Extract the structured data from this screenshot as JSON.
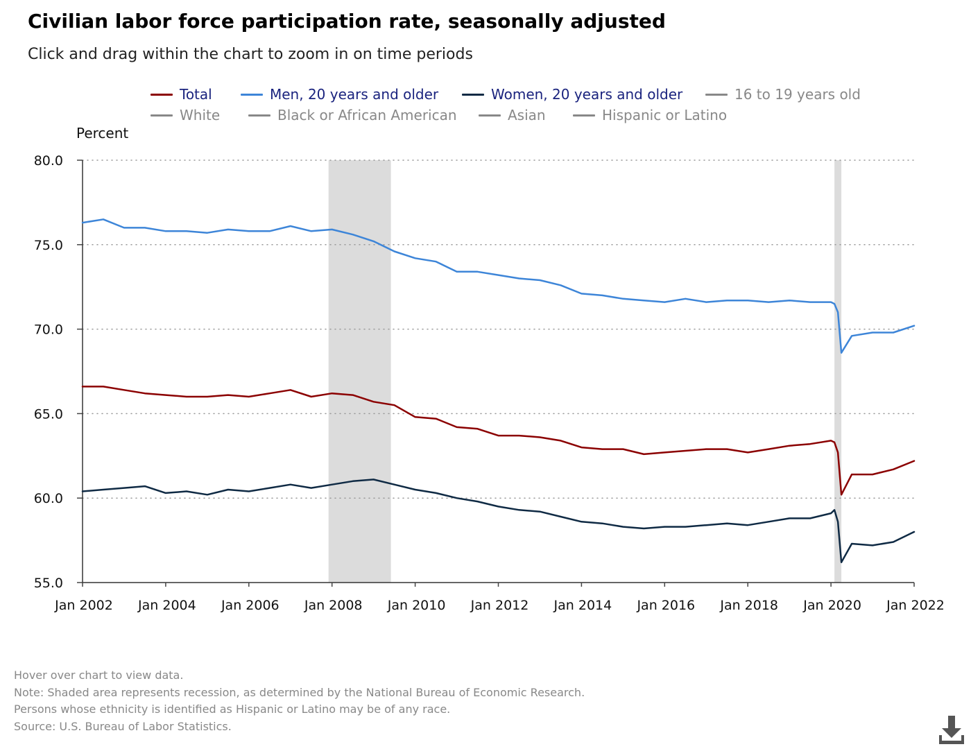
{
  "title": "Civilian labor force participation rate, seasonally adjusted",
  "subtitle": "Click and drag within the chart to zoom in on time periods",
  "legend": [
    {
      "label": "Total",
      "color": "#8b0000",
      "active": true
    },
    {
      "label": "Men, 20 years and older",
      "color": "#3d85d8",
      "active": true
    },
    {
      "label": "Women, 20 years and older",
      "color": "#0f2a44",
      "active": true
    },
    {
      "label": "16 to 19 years old",
      "color": "#888888",
      "active": false
    },
    {
      "label": "White",
      "color": "#888888",
      "active": false
    },
    {
      "label": "Black or African American",
      "color": "#888888",
      "active": false
    },
    {
      "label": "Asian",
      "color": "#888888",
      "active": false
    },
    {
      "label": "Hispanic or Latino",
      "color": "#888888",
      "active": false
    }
  ],
  "footer": {
    "hover": "Hover over chart to view data.",
    "note": "Note: Shaded area represents recession, as determined by the National Bureau of Economic Research.",
    "ethnicity": "Persons whose ethnicity is identified as Hispanic or Latino may be of any race.",
    "source": "Source: U.S. Bureau of Labor Statistics."
  },
  "chart_data": {
    "type": "line",
    "ylabel": "Percent",
    "ylim": [
      55.0,
      80.0
    ],
    "yticks": [
      "55.0",
      "60.0",
      "65.0",
      "70.0",
      "75.0",
      "80.0"
    ],
    "xlim": [
      "2002-01",
      "2022-01"
    ],
    "xticks": [
      "Jan 2002",
      "Jan 2004",
      "Jan 2006",
      "Jan 2008",
      "Jan 2010",
      "Jan 2012",
      "Jan 2014",
      "Jan 2016",
      "Jan 2018",
      "Jan 2020",
      "Jan 2022"
    ],
    "grid": "horizontal dotted",
    "legend_position": "top",
    "recessions": [
      {
        "start": "2007-12",
        "end": "2009-06"
      },
      {
        "start": "2020-02",
        "end": "2020-04"
      }
    ],
    "series": [
      {
        "name": "Total",
        "color": "#8b0000",
        "points": [
          [
            "2002-01",
            66.6
          ],
          [
            "2002-07",
            66.6
          ],
          [
            "2003-01",
            66.4
          ],
          [
            "2003-07",
            66.2
          ],
          [
            "2004-01",
            66.1
          ],
          [
            "2004-07",
            66.0
          ],
          [
            "2005-01",
            66.0
          ],
          [
            "2005-07",
            66.1
          ],
          [
            "2006-01",
            66.0
          ],
          [
            "2006-07",
            66.2
          ],
          [
            "2007-01",
            66.4
          ],
          [
            "2007-07",
            66.0
          ],
          [
            "2008-01",
            66.2
          ],
          [
            "2008-07",
            66.1
          ],
          [
            "2009-01",
            65.7
          ],
          [
            "2009-07",
            65.5
          ],
          [
            "2010-01",
            64.8
          ],
          [
            "2010-07",
            64.7
          ],
          [
            "2011-01",
            64.2
          ],
          [
            "2011-07",
            64.1
          ],
          [
            "2012-01",
            63.7
          ],
          [
            "2012-07",
            63.7
          ],
          [
            "2013-01",
            63.6
          ],
          [
            "2013-07",
            63.4
          ],
          [
            "2014-01",
            63.0
          ],
          [
            "2014-07",
            62.9
          ],
          [
            "2015-01",
            62.9
          ],
          [
            "2015-07",
            62.6
          ],
          [
            "2016-01",
            62.7
          ],
          [
            "2016-07",
            62.8
          ],
          [
            "2017-01",
            62.9
          ],
          [
            "2017-07",
            62.9
          ],
          [
            "2018-01",
            62.7
          ],
          [
            "2018-07",
            62.9
          ],
          [
            "2019-01",
            63.1
          ],
          [
            "2019-07",
            63.2
          ],
          [
            "2020-01",
            63.4
          ],
          [
            "2020-02",
            63.3
          ],
          [
            "2020-03",
            62.7
          ],
          [
            "2020-04",
            60.2
          ],
          [
            "2020-07",
            61.4
          ],
          [
            "2021-01",
            61.4
          ],
          [
            "2021-07",
            61.7
          ],
          [
            "2022-01",
            62.2
          ]
        ]
      },
      {
        "name": "Men, 20 years and older",
        "color": "#3d85d8",
        "points": [
          [
            "2002-01",
            76.3
          ],
          [
            "2002-07",
            76.5
          ],
          [
            "2003-01",
            76.0
          ],
          [
            "2003-07",
            76.0
          ],
          [
            "2004-01",
            75.8
          ],
          [
            "2004-07",
            75.8
          ],
          [
            "2005-01",
            75.7
          ],
          [
            "2005-07",
            75.9
          ],
          [
            "2006-01",
            75.8
          ],
          [
            "2006-07",
            75.8
          ],
          [
            "2007-01",
            76.1
          ],
          [
            "2007-07",
            75.8
          ],
          [
            "2008-01",
            75.9
          ],
          [
            "2008-07",
            75.6
          ],
          [
            "2009-01",
            75.2
          ],
          [
            "2009-07",
            74.6
          ],
          [
            "2010-01",
            74.2
          ],
          [
            "2010-07",
            74.0
          ],
          [
            "2011-01",
            73.4
          ],
          [
            "2011-07",
            73.4
          ],
          [
            "2012-01",
            73.2
          ],
          [
            "2012-07",
            73.0
          ],
          [
            "2013-01",
            72.9
          ],
          [
            "2013-07",
            72.6
          ],
          [
            "2014-01",
            72.1
          ],
          [
            "2014-07",
            72.0
          ],
          [
            "2015-01",
            71.8
          ],
          [
            "2015-07",
            71.7
          ],
          [
            "2016-01",
            71.6
          ],
          [
            "2016-07",
            71.8
          ],
          [
            "2017-01",
            71.6
          ],
          [
            "2017-07",
            71.7
          ],
          [
            "2018-01",
            71.7
          ],
          [
            "2018-07",
            71.6
          ],
          [
            "2019-01",
            71.7
          ],
          [
            "2019-07",
            71.6
          ],
          [
            "2020-01",
            71.6
          ],
          [
            "2020-02",
            71.5
          ],
          [
            "2020-03",
            71.0
          ],
          [
            "2020-04",
            68.6
          ],
          [
            "2020-07",
            69.6
          ],
          [
            "2021-01",
            69.8
          ],
          [
            "2021-07",
            69.8
          ],
          [
            "2022-01",
            70.2
          ]
        ]
      },
      {
        "name": "Women, 20 years and older",
        "color": "#0f2a44",
        "points": [
          [
            "2002-01",
            60.4
          ],
          [
            "2002-07",
            60.5
          ],
          [
            "2003-01",
            60.6
          ],
          [
            "2003-07",
            60.7
          ],
          [
            "2004-01",
            60.3
          ],
          [
            "2004-07",
            60.4
          ],
          [
            "2005-01",
            60.2
          ],
          [
            "2005-07",
            60.5
          ],
          [
            "2006-01",
            60.4
          ],
          [
            "2006-07",
            60.6
          ],
          [
            "2007-01",
            60.8
          ],
          [
            "2007-07",
            60.6
          ],
          [
            "2008-01",
            60.8
          ],
          [
            "2008-07",
            61.0
          ],
          [
            "2009-01",
            61.1
          ],
          [
            "2009-07",
            60.8
          ],
          [
            "2010-01",
            60.5
          ],
          [
            "2010-07",
            60.3
          ],
          [
            "2011-01",
            60.0
          ],
          [
            "2011-07",
            59.8
          ],
          [
            "2012-01",
            59.5
          ],
          [
            "2012-07",
            59.3
          ],
          [
            "2013-01",
            59.2
          ],
          [
            "2013-07",
            58.9
          ],
          [
            "2014-01",
            58.6
          ],
          [
            "2014-07",
            58.5
          ],
          [
            "2015-01",
            58.3
          ],
          [
            "2015-07",
            58.2
          ],
          [
            "2016-01",
            58.3
          ],
          [
            "2016-07",
            58.3
          ],
          [
            "2017-01",
            58.4
          ],
          [
            "2017-07",
            58.5
          ],
          [
            "2018-01",
            58.4
          ],
          [
            "2018-07",
            58.6
          ],
          [
            "2019-01",
            58.8
          ],
          [
            "2019-07",
            58.8
          ],
          [
            "2020-01",
            59.1
          ],
          [
            "2020-02",
            59.3
          ],
          [
            "2020-03",
            58.6
          ],
          [
            "2020-04",
            56.2
          ],
          [
            "2020-07",
            57.3
          ],
          [
            "2021-01",
            57.2
          ],
          [
            "2021-07",
            57.4
          ],
          [
            "2022-01",
            58.0
          ]
        ]
      }
    ]
  }
}
